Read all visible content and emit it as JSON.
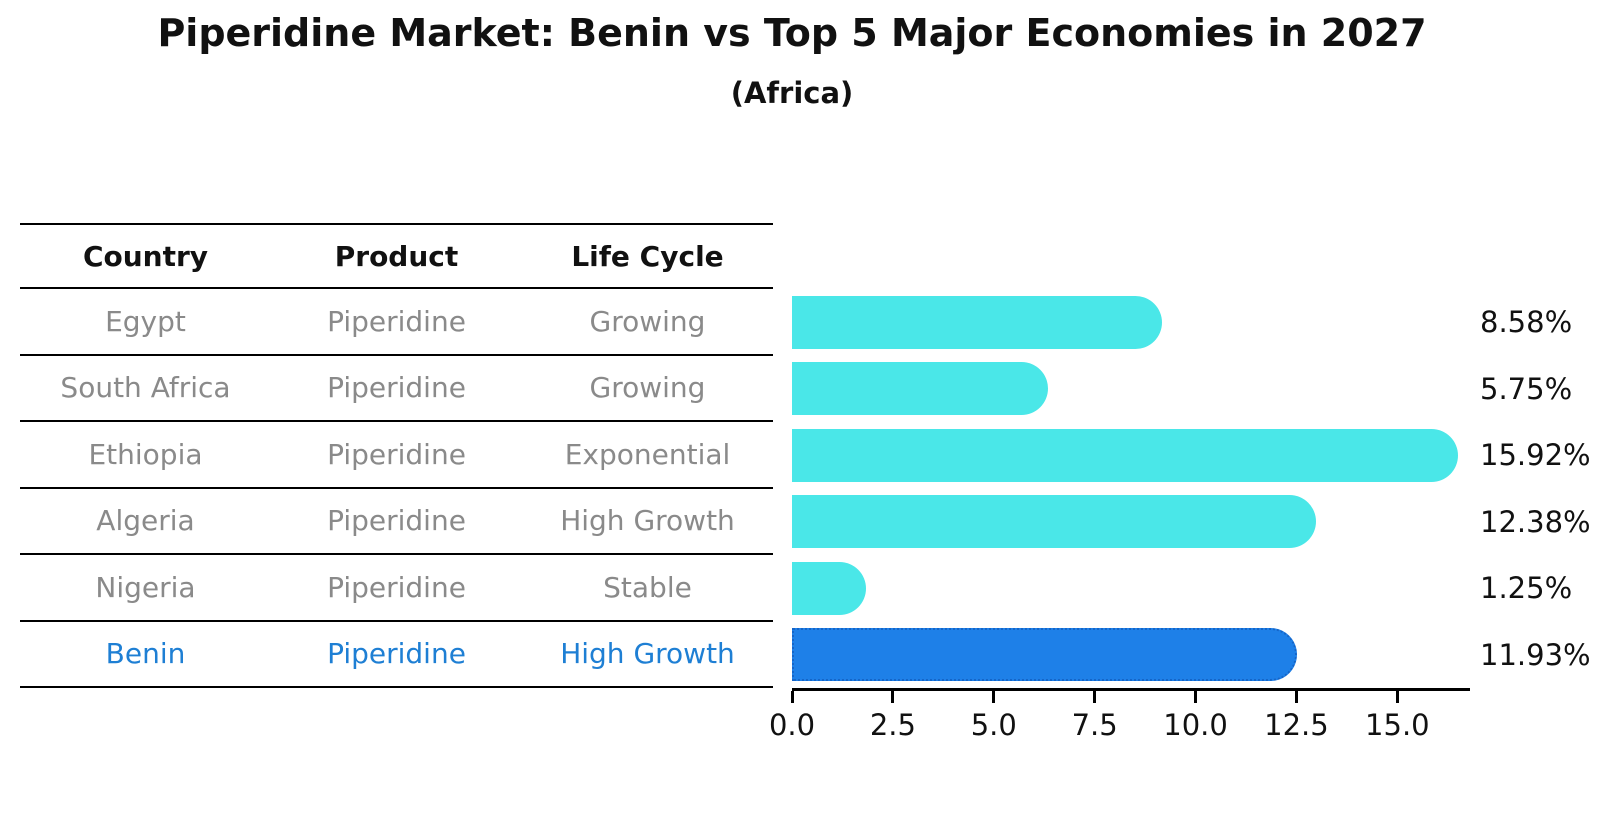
{
  "title": "Piperidine Market: Benin vs Top 5 Major Economies in 2027",
  "subtitle": "(Africa)",
  "table": {
    "headers": [
      "Country",
      "Product",
      "Life Cycle"
    ],
    "rows": [
      {
        "country": "Egypt",
        "product": "Piperidine",
        "life_cycle": "Growing"
      },
      {
        "country": "South Africa",
        "product": "Piperidine",
        "life_cycle": "Growing"
      },
      {
        "country": "Ethiopia",
        "product": "Piperidine",
        "life_cycle": "Exponential"
      },
      {
        "country": "Algeria",
        "product": "Piperidine",
        "life_cycle": "High Growth"
      },
      {
        "country": "Nigeria",
        "product": "Piperidine",
        "life_cycle": "Stable"
      },
      {
        "country": "Benin",
        "product": "Piperidine",
        "life_cycle": "High Growth"
      }
    ]
  },
  "chart_data": {
    "type": "bar",
    "orientation": "horizontal",
    "title": "Piperidine Market: Benin vs Top 5 Major Economies in 2027",
    "subtitle": "(Africa)",
    "categories": [
      "Egypt",
      "South Africa",
      "Ethiopia",
      "Algeria",
      "Nigeria",
      "Benin"
    ],
    "values": [
      8.58,
      5.75,
      15.92,
      12.38,
      1.25,
      11.93
    ],
    "value_labels": [
      "8.58%",
      "5.75%",
      "15.92%",
      "12.38%",
      "1.25%",
      "11.93%"
    ],
    "x_ticks": [
      0.0,
      2.5,
      5.0,
      7.5,
      10.0,
      12.5,
      15.0
    ],
    "x_tick_labels": [
      "0.0",
      "2.5",
      "5.0",
      "7.5",
      "10.0",
      "12.5",
      "15.0"
    ],
    "xlim": [
      0,
      16.8
    ],
    "grid": false,
    "legend": false,
    "highlight_index": 5,
    "bar_color": "#4AE7E8",
    "highlight_bar_color": "#1E80E8",
    "highlight_border_color": "#1565C8",
    "highlight_text_color": "#1E7FD4"
  },
  "colors": {
    "background": "#FFFFFF",
    "text": "#111111",
    "muted_text": "#8A8A8A",
    "table_line": "#000000"
  }
}
